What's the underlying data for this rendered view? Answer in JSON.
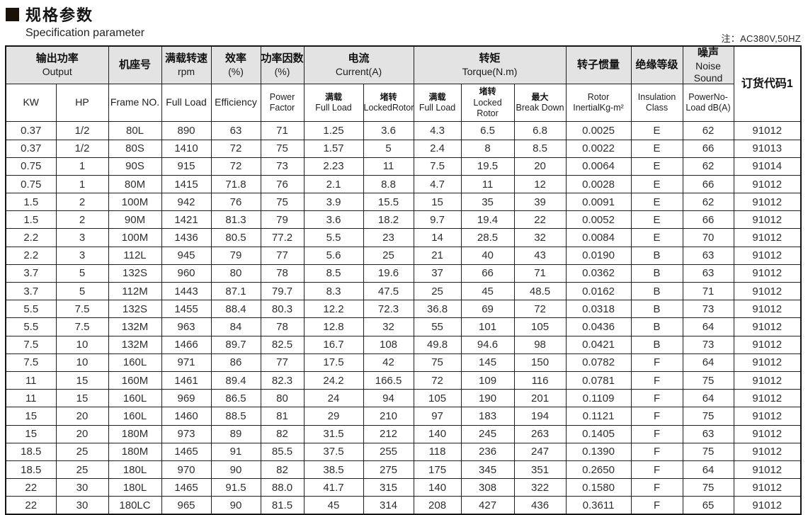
{
  "page": {
    "title_zh": "规格参数",
    "title_en": "Specification parameter",
    "note": "注：AC380V,50HZ"
  },
  "table": {
    "head": {
      "output": {
        "zh": "输出功率",
        "en": "Output"
      },
      "frame": {
        "zh": "机座号"
      },
      "rpm": {
        "zh": "满载转速",
        "en": "rpm"
      },
      "efficiency": {
        "zh": "效率",
        "en": "(%)"
      },
      "power_factor": {
        "zh": "功率因数",
        "en": "(%)"
      },
      "current": {
        "zh": "电流",
        "en": "Current(A)"
      },
      "torque": {
        "zh": "转矩",
        "en": "Torque(N.m)"
      },
      "rotor": {
        "zh": "转子惯量"
      },
      "insulation": {
        "zh": "绝缘等级"
      },
      "noise": {
        "zh": "噪声",
        "en1": "Noise",
        "en2": "Sound"
      },
      "order": {
        "label": "订货代码1"
      }
    },
    "subhead": {
      "kw": "KW",
      "hp": "HP",
      "frame_no": "Frame NO.",
      "full_load": "Full Load",
      "efficiency": "Efficiency",
      "power_factor": {
        "l1": "Power",
        "l2": "Factor"
      },
      "current_full_load": {
        "zh": "满载",
        "en": "Full Load"
      },
      "current_locked_rotor": {
        "zh": "堵转",
        "en": "LockedRotor"
      },
      "torque_full_load": {
        "zh": "满载",
        "en": "Full Load"
      },
      "torque_locked_rotor": {
        "zh": "堵转",
        "en": "Locked Rotor"
      },
      "torque_break_down": {
        "zh": "最大",
        "en": "Break Down"
      },
      "rotor": {
        "l1": "Rotor",
        "l2": "InertialKg-m²"
      },
      "insulation": {
        "l1": "Insulation",
        "l2": "Class"
      },
      "noise": {
        "l1": "PowerNo-",
        "l2": "Load dB(A)"
      }
    },
    "col_keys": [
      "kw",
      "hp",
      "frame_no",
      "full_load_rpm",
      "efficiency",
      "power_factor",
      "current_full_load",
      "current_locked_rotor",
      "torque_full_load",
      "torque_locked_rotor",
      "torque_break_down",
      "rotor_inertia",
      "insulation_class",
      "noise_db",
      "order_code"
    ],
    "rows": [
      [
        "0.37",
        "1/2",
        "80L",
        "890",
        "63",
        "71",
        "1.25",
        "3.6",
        "4.3",
        "6.5",
        "6.8",
        "0.0025",
        "E",
        "62",
        "91012"
      ],
      [
        "0.37",
        "1/2",
        "80S",
        "1410",
        "72",
        "75",
        "1.57",
        "5",
        "2.4",
        "8",
        "8.5",
        "0.0022",
        "E",
        "66",
        "91013"
      ],
      [
        "0.75",
        "1",
        "90S",
        "915",
        "72",
        "73",
        "2.23",
        "11",
        "7.5",
        "19.5",
        "20",
        "0.0064",
        "E",
        "62",
        "91014"
      ],
      [
        "0.75",
        "1",
        "80M",
        "1415",
        "71.8",
        "76",
        "2.1",
        "8.8",
        "4.7",
        "11",
        "12",
        "0.0028",
        "E",
        "66",
        "91012"
      ],
      [
        "1.5",
        "2",
        "100M",
        "942",
        "76",
        "75",
        "3.9",
        "15.5",
        "15",
        "35",
        "39",
        "0.0091",
        "E",
        "62",
        "91012"
      ],
      [
        "1.5",
        "2",
        "90M",
        "1421",
        "81.3",
        "79",
        "3.6",
        "18.2",
        "9.7",
        "19.4",
        "22",
        "0.0052",
        "E",
        "66",
        "91012"
      ],
      [
        "2.2",
        "3",
        "100M",
        "1436",
        "80.5",
        "77.2",
        "5.5",
        "23",
        "14",
        "28.5",
        "32",
        "0.0084",
        "E",
        "70",
        "91012"
      ],
      [
        "2.2",
        "3",
        "112L",
        "945",
        "79",
        "77",
        "5.6",
        "25",
        "21",
        "40",
        "43",
        "0.0190",
        "B",
        "63",
        "91012"
      ],
      [
        "3.7",
        "5",
        "132S",
        "960",
        "80",
        "78",
        "8.5",
        "19.6",
        "37",
        "66",
        "71",
        "0.0362",
        "B",
        "63",
        "91012"
      ],
      [
        "3.7",
        "5",
        "112M",
        "1443",
        "87.1",
        "79.7",
        "8.3",
        "47.5",
        "25",
        "45",
        "48.5",
        "0.0162",
        "B",
        "71",
        "91012"
      ],
      [
        "5.5",
        "7.5",
        "132S",
        "1455",
        "88.4",
        "80.3",
        "12.2",
        "72.3",
        "36.8",
        "69",
        "72",
        "0.0318",
        "B",
        "73",
        "91012"
      ],
      [
        "5.5",
        "7.5",
        "132M",
        "963",
        "84",
        "78",
        "12.8",
        "32",
        "55",
        "101",
        "105",
        "0.0436",
        "B",
        "64",
        "91012"
      ],
      [
        "7.5",
        "10",
        "132M",
        "1466",
        "89.7",
        "82.5",
        "16.7",
        "108",
        "49.8",
        "94.6",
        "98",
        "0.0421",
        "B",
        "73",
        "91012"
      ],
      [
        "7.5",
        "10",
        "160L",
        "971",
        "86",
        "77",
        "17.5",
        "42",
        "75",
        "145",
        "150",
        "0.0782",
        "F",
        "64",
        "91012"
      ],
      [
        "11",
        "15",
        "160M",
        "1461",
        "89.4",
        "82.3",
        "24.2",
        "166.5",
        "72",
        "109",
        "116",
        "0.0781",
        "F",
        "75",
        "91012"
      ],
      [
        "11",
        "15",
        "160L",
        "969",
        "86.5",
        "80",
        "24",
        "94",
        "105",
        "190",
        "201",
        "0.1109",
        "F",
        "64",
        "91012"
      ],
      [
        "15",
        "20",
        "160L",
        "1460",
        "88.5",
        "81",
        "29",
        "210",
        "97",
        "183",
        "194",
        "0.1121",
        "F",
        "75",
        "91012"
      ],
      [
        "15",
        "20",
        "180M",
        "973",
        "89",
        "82",
        "31.5",
        "212",
        "140",
        "245",
        "263",
        "0.1405",
        "F",
        "63",
        "91012"
      ],
      [
        "18.5",
        "25",
        "180M",
        "1465",
        "91",
        "85.5",
        "37.5",
        "255",
        "118",
        "236",
        "247",
        "0.1390",
        "F",
        "75",
        "91012"
      ],
      [
        "18.5",
        "25",
        "180L",
        "970",
        "90",
        "82",
        "38.5",
        "275",
        "175",
        "345",
        "351",
        "0.2650",
        "F",
        "64",
        "91012"
      ],
      [
        "22",
        "30",
        "180L",
        "1465",
        "91.5",
        "88.0",
        "41.7",
        "315",
        "140",
        "308",
        "322",
        "0.1580",
        "F",
        "75",
        "91012"
      ],
      [
        "22",
        "30",
        "180LC",
        "965",
        "90",
        "81.5",
        "45",
        "314",
        "208",
        "427",
        "436",
        "0.3611",
        "F",
        "65",
        "91012"
      ]
    ]
  }
}
